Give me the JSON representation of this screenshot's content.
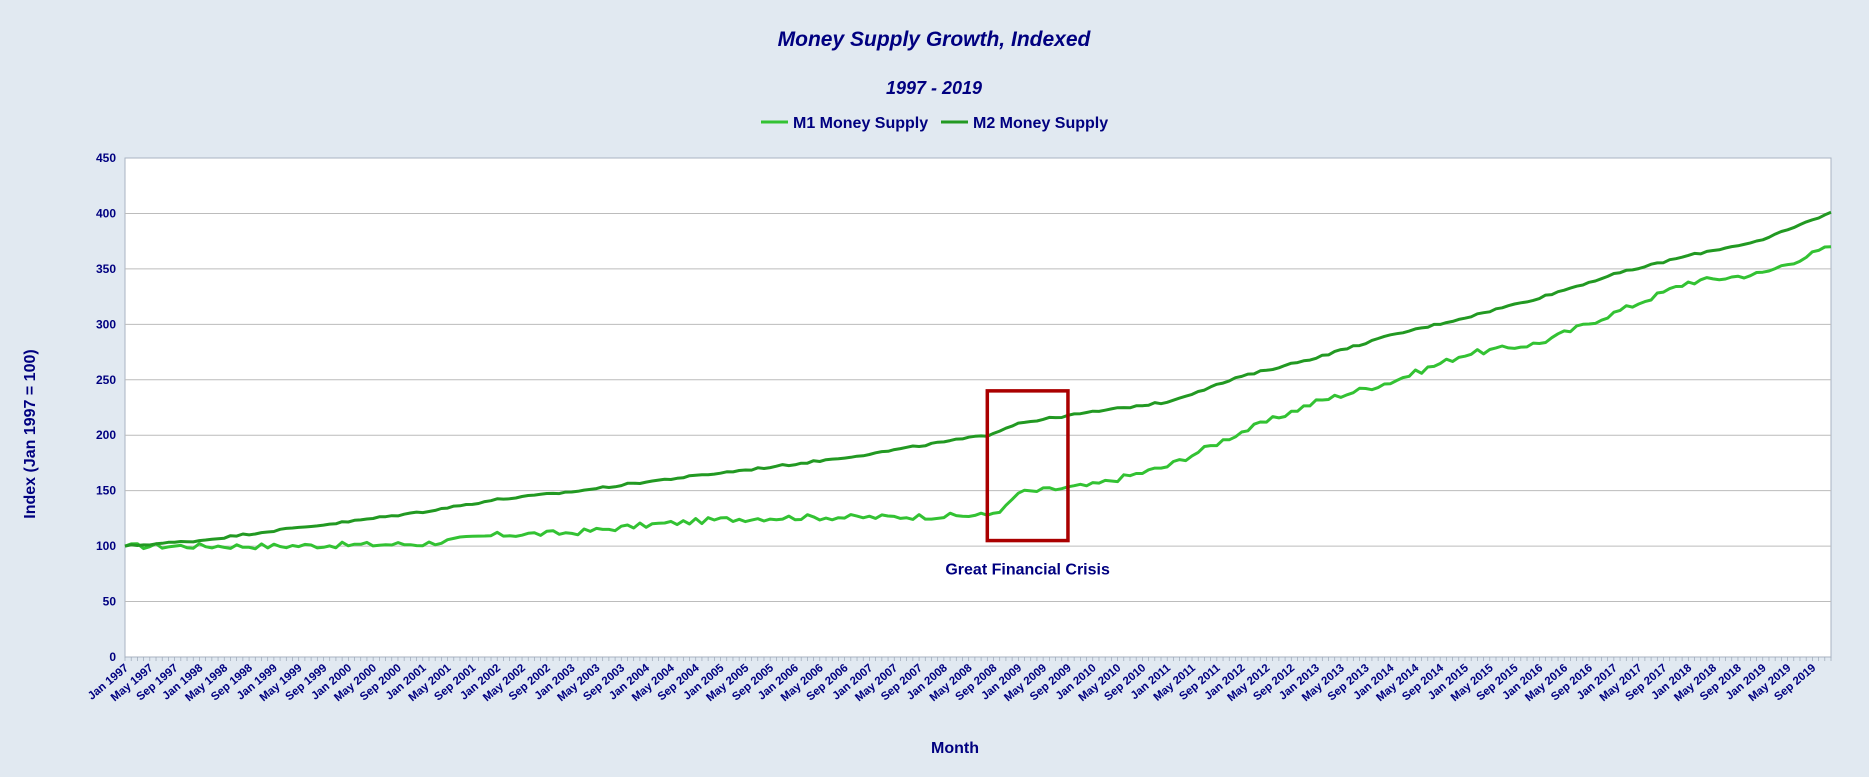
{
  "chart_data": {
    "type": "line",
    "title": "Money Supply Growth, Indexed",
    "subtitle": "1997 - 2019",
    "xlabel": "Month",
    "ylabel": "Index (Jan 1997 = 100)",
    "ylim": [
      0,
      450
    ],
    "yticks": [
      0,
      50,
      100,
      150,
      200,
      250,
      300,
      350,
      400,
      450
    ],
    "grid": true,
    "legend_position": "top-center",
    "x_start": "Jan 1997",
    "x_end": "Dec 2019",
    "x_tick_labels": [
      "Jan 1997",
      "May 1997",
      "Sep 1997",
      "Jan 1998",
      "May 1998",
      "Sep 1998",
      "Jan 1999",
      "May 1999",
      "Sep 1999",
      "Jan 2000",
      "May 2000",
      "Sep 2000",
      "Jan 2001",
      "May 2001",
      "Sep 2001",
      "Jan 2002",
      "May 2002",
      "Sep 2002",
      "Jan 2003",
      "May 2003",
      "Sep 2003",
      "Jan 2004",
      "May 2004",
      "Sep 2004",
      "Jan 2005",
      "May 2005",
      "Sep 2005",
      "Jan 2006",
      "May 2006",
      "Sep 2006",
      "Jan 2007",
      "May 2007",
      "Sep 2007",
      "Jan 2008",
      "May 2008",
      "Sep 2008",
      "Jan 2009",
      "May 2009",
      "Sep 2009",
      "Jan 2010",
      "May 2010",
      "Sep 2010",
      "Jan 2011",
      "May 2011",
      "Sep 2011",
      "Jan 2012",
      "May 2012",
      "Sep 2012",
      "Jan 2013",
      "May 2013",
      "Sep 2013",
      "Jan 2014",
      "May 2014",
      "Sep 2014",
      "Jan 2015",
      "May 2015",
      "Sep 2015",
      "Jan 2016",
      "May 2016",
      "Sep 2016",
      "Jan 2017",
      "May 2017",
      "Sep 2017",
      "Jan 2018",
      "May 2018",
      "Sep 2018",
      "Jan 2019",
      "May 2019",
      "Sep 2019"
    ],
    "series": [
      {
        "name": "M1 Money Supply",
        "color": "#33c233",
        "points": [
          [
            "Jan 1997",
            100
          ],
          [
            "Jan 1998",
            100
          ],
          [
            "Jan 1999",
            100
          ],
          [
            "Jan 2000",
            101
          ],
          [
            "Jan 2001",
            102
          ],
          [
            "Jan 2002",
            110
          ],
          [
            "Jan 2003",
            112
          ],
          [
            "Jan 2004",
            119
          ],
          [
            "Jan 2005",
            124
          ],
          [
            "Jan 2006",
            126
          ],
          [
            "Jan 2007",
            126
          ],
          [
            "Jan 2008",
            127
          ],
          [
            "Aug 2008",
            128
          ],
          [
            "Nov 2008",
            135
          ],
          [
            "Jan 2009",
            148
          ],
          [
            "Jan 2010",
            155
          ],
          [
            "Jan 2011",
            172
          ],
          [
            "Jan 2012",
            203
          ],
          [
            "Jan 2013",
            230
          ],
          [
            "Jan 2014",
            248
          ],
          [
            "Jan 2015",
            273
          ],
          [
            "Jan 2016",
            283
          ],
          [
            "Jan 2017",
            310
          ],
          [
            "Jan 2018",
            338
          ],
          [
            "Jan 2019",
            346
          ],
          [
            "Dec 2019",
            370
          ]
        ]
      },
      {
        "name": "M2 Money Supply",
        "color": "#229922",
        "points": [
          [
            "Jan 1997",
            100
          ],
          [
            "Jan 1998",
            105
          ],
          [
            "Jan 1999",
            114
          ],
          [
            "Jan 2000",
            122
          ],
          [
            "Jan 2001",
            131
          ],
          [
            "Jan 2002",
            142
          ],
          [
            "Jan 2003",
            149
          ],
          [
            "Jan 2004",
            158
          ],
          [
            "Jan 2005",
            166
          ],
          [
            "Jan 2006",
            174
          ],
          [
            "Jan 2007",
            183
          ],
          [
            "Jan 2008",
            194
          ],
          [
            "Aug 2008",
            200
          ],
          [
            "Jan 2009",
            211
          ],
          [
            "Jan 2010",
            221
          ],
          [
            "Jan 2011",
            230
          ],
          [
            "Jan 2012",
            253
          ],
          [
            "Jan 2013",
            270
          ],
          [
            "Jan 2014",
            290
          ],
          [
            "Jan 2015",
            306
          ],
          [
            "Jan 2016",
            324
          ],
          [
            "Jan 2017",
            345
          ],
          [
            "Jan 2018",
            362
          ],
          [
            "Jan 2019",
            376
          ],
          [
            "Dec 2019",
            401
          ]
        ]
      }
    ],
    "annotations": [
      {
        "text": "Great Financial Crisis",
        "x_from": "Aug 2008",
        "x_to": "Sep 2009",
        "y_from": 105,
        "y_to": 240,
        "box_color": "#aa0000"
      }
    ]
  }
}
